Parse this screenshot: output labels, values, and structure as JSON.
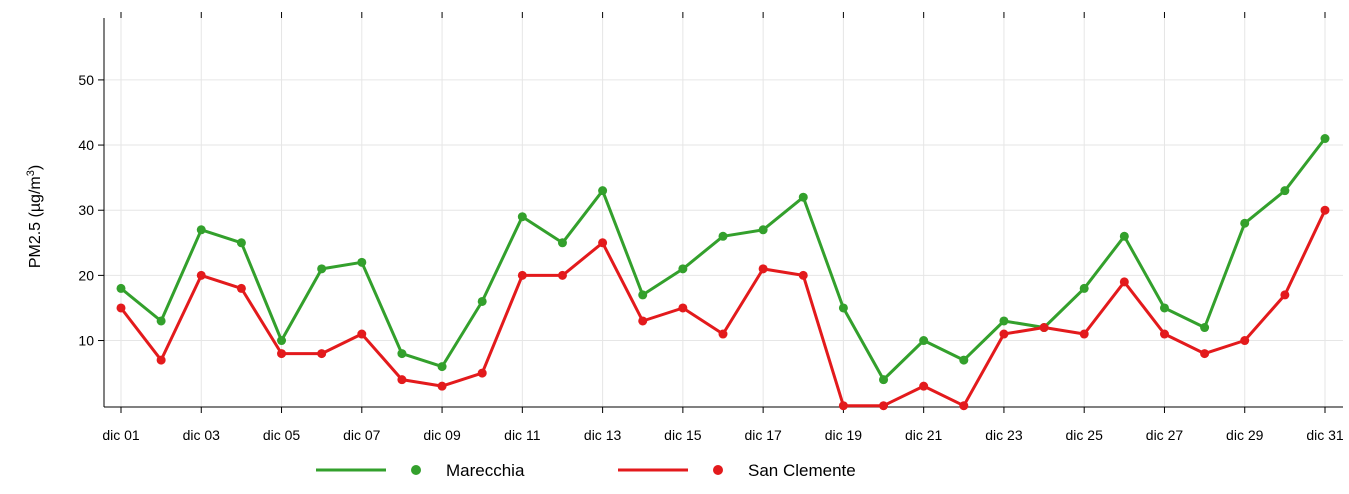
{
  "chart_data": {
    "type": "line",
    "title": "",
    "ylabel": "PM2.5 (µg/m³)",
    "ylabel_parts": {
      "base": "PM2.5 (µg/m",
      "sup": "3",
      "tail": ")"
    },
    "x": [
      "dic 01",
      "dic 02",
      "dic 03",
      "dic 04",
      "dic 05",
      "dic 06",
      "dic 07",
      "dic 08",
      "dic 09",
      "dic 10",
      "dic 11",
      "dic 12",
      "dic 13",
      "dic 14",
      "dic 15",
      "dic 16",
      "dic 17",
      "dic 18",
      "dic 19",
      "dic 20",
      "dic 21",
      "dic 22",
      "dic 23",
      "dic 24",
      "dic 25",
      "dic 26",
      "dic 27",
      "dic 28",
      "dic 29",
      "dic 30",
      "dic 31"
    ],
    "x_tick_labels": [
      "dic 01",
      "dic 03",
      "dic 05",
      "dic 07",
      "dic 09",
      "dic 11",
      "dic 13",
      "dic 15",
      "dic 17",
      "dic 19",
      "dic 21",
      "dic 23",
      "dic 25",
      "dic 27",
      "dic 29",
      "dic 31"
    ],
    "y_ticks": [
      10,
      20,
      30,
      40,
      50
    ],
    "ylim": [
      -0.2,
      59.5
    ],
    "grid": true,
    "legend_position": "bottom",
    "series": [
      {
        "name": "Marecchia",
        "color": "#33A02C",
        "values": [
          18,
          13,
          27,
          25,
          10,
          21,
          22,
          8,
          6,
          16,
          29,
          25,
          33,
          17,
          21,
          26,
          27,
          32,
          15,
          4,
          10,
          7,
          13,
          12,
          18,
          26,
          15,
          12,
          28,
          33,
          41
        ]
      },
      {
        "name": "San Clemente",
        "color": "#E31A1C",
        "values": [
          15,
          7,
          20,
          18,
          8,
          8,
          11,
          4,
          3,
          5,
          20,
          20,
          25,
          13,
          15,
          11,
          21,
          20,
          0,
          0,
          3,
          0,
          11,
          12,
          11,
          19,
          11,
          8,
          10,
          17,
          30
        ]
      }
    ]
  }
}
